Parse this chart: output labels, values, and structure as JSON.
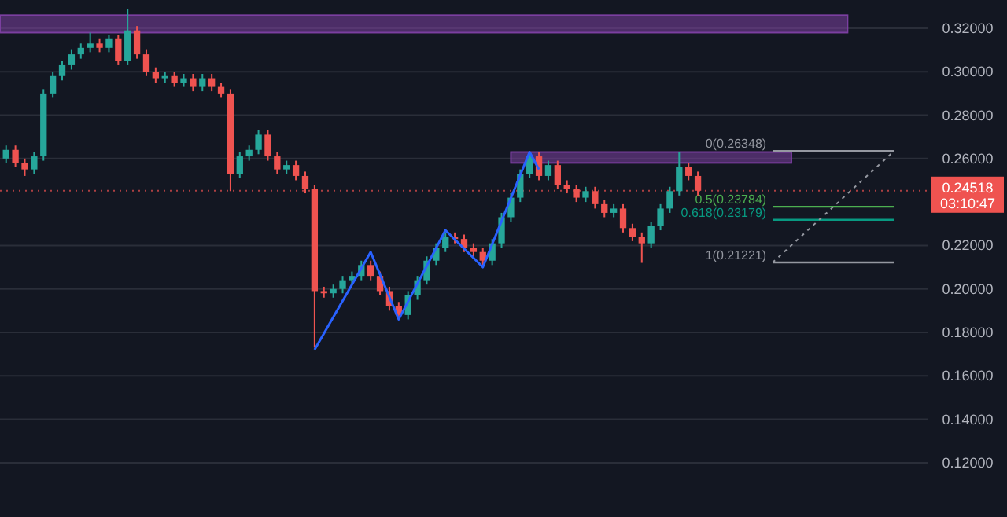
{
  "chart_data": {
    "type": "candlestick",
    "categories": [
      null,
      null,
      null,
      null,
      null,
      null,
      null,
      null,
      null,
      null,
      null,
      null,
      null,
      null,
      null,
      null,
      null,
      null,
      null,
      null,
      null,
      null,
      null,
      null,
      null,
      null,
      null,
      null,
      null,
      null,
      null,
      null,
      null,
      null,
      null,
      null,
      null,
      null,
      null,
      null,
      null,
      null,
      null,
      null,
      null,
      null,
      null,
      null,
      null,
      null,
      null,
      null,
      null,
      null,
      null,
      null,
      null,
      null,
      null,
      null,
      null,
      null,
      null,
      null,
      null,
      null,
      null,
      null,
      null,
      null,
      null,
      null,
      null,
      null,
      null,
      null,
      null,
      null,
      null,
      null,
      null,
      null,
      null,
      null,
      null,
      null,
      null,
      null,
      null,
      null,
      null,
      null,
      null,
      null,
      null,
      null,
      null,
      null,
      null
    ],
    "ohlc": [
      [
        0.26,
        0.266,
        0.258,
        0.264
      ],
      [
        0.264,
        0.266,
        0.256,
        0.258
      ],
      [
        0.258,
        0.26,
        0.252,
        0.255
      ],
      [
        0.255,
        0.263,
        0.253,
        0.261
      ],
      [
        0.261,
        0.292,
        0.259,
        0.29
      ],
      [
        0.29,
        0.3,
        0.288,
        0.298
      ],
      [
        0.298,
        0.305,
        0.296,
        0.303
      ],
      [
        0.303,
        0.31,
        0.301,
        0.308
      ],
      [
        0.308,
        0.313,
        0.306,
        0.311
      ],
      [
        0.311,
        0.318,
        0.309,
        0.313
      ],
      [
        0.313,
        0.315,
        0.309,
        0.311
      ],
      [
        0.311,
        0.317,
        0.309,
        0.315
      ],
      [
        0.315,
        0.317,
        0.303,
        0.305
      ],
      [
        0.305,
        0.329,
        0.303,
        0.319
      ],
      [
        0.319,
        0.321,
        0.306,
        0.308
      ],
      [
        0.308,
        0.31,
        0.298,
        0.3
      ],
      [
        0.3,
        0.302,
        0.295,
        0.297
      ],
      [
        0.297,
        0.3,
        0.295,
        0.298
      ],
      [
        0.298,
        0.3,
        0.293,
        0.295
      ],
      [
        0.295,
        0.299,
        0.293,
        0.297
      ],
      [
        0.297,
        0.299,
        0.291,
        0.293
      ],
      [
        0.293,
        0.299,
        0.291,
        0.297
      ],
      [
        0.297,
        0.299,
        0.291,
        0.293
      ],
      [
        0.293,
        0.295,
        0.288,
        0.29
      ],
      [
        0.29,
        0.292,
        0.245,
        0.253
      ],
      [
        0.253,
        0.263,
        0.251,
        0.261
      ],
      [
        0.261,
        0.266,
        0.259,
        0.264
      ],
      [
        0.264,
        0.273,
        0.262,
        0.271
      ],
      [
        0.271,
        0.273,
        0.259,
        0.261
      ],
      [
        0.261,
        0.263,
        0.253,
        0.255
      ],
      [
        0.255,
        0.259,
        0.253,
        0.257
      ],
      [
        0.257,
        0.259,
        0.25,
        0.252
      ],
      [
        0.252,
        0.254,
        0.244,
        0.246
      ],
      [
        0.246,
        0.248,
        0.173,
        0.199
      ],
      [
        0.199,
        0.201,
        0.196,
        0.198
      ],
      [
        0.198,
        0.202,
        0.196,
        0.2
      ],
      [
        0.2,
        0.206,
        0.198,
        0.204
      ],
      [
        0.204,
        0.208,
        0.202,
        0.206
      ],
      [
        0.206,
        0.213,
        0.204,
        0.211
      ],
      [
        0.211,
        0.213,
        0.204,
        0.206
      ],
      [
        0.206,
        0.208,
        0.197,
        0.199
      ],
      [
        0.199,
        0.201,
        0.19,
        0.192
      ],
      [
        0.192,
        0.194,
        0.186,
        0.188
      ],
      [
        0.188,
        0.199,
        0.186,
        0.197
      ],
      [
        0.197,
        0.206,
        0.195,
        0.204
      ],
      [
        0.204,
        0.215,
        0.202,
        0.213
      ],
      [
        0.213,
        0.221,
        0.211,
        0.219
      ],
      [
        0.219,
        0.226,
        0.217,
        0.224
      ],
      [
        0.224,
        0.226,
        0.221,
        0.223
      ],
      [
        0.223,
        0.225,
        0.217,
        0.219
      ],
      [
        0.219,
        0.221,
        0.215,
        0.217
      ],
      [
        0.217,
        0.219,
        0.211,
        0.213
      ],
      [
        0.213,
        0.223,
        0.211,
        0.221
      ],
      [
        0.221,
        0.235,
        0.219,
        0.233
      ],
      [
        0.233,
        0.244,
        0.231,
        0.242
      ],
      [
        0.242,
        0.255,
        0.24,
        0.253
      ],
      [
        0.253,
        0.263,
        0.251,
        0.261
      ],
      [
        0.261,
        0.263,
        0.25,
        0.252
      ],
      [
        0.252,
        0.259,
        0.25,
        0.257
      ],
      [
        0.257,
        0.259,
        0.246,
        0.248
      ],
      [
        0.248,
        0.25,
        0.244,
        0.246
      ],
      [
        0.246,
        0.248,
        0.24,
        0.242
      ],
      [
        0.242,
        0.247,
        0.24,
        0.245
      ],
      [
        0.245,
        0.247,
        0.237,
        0.239
      ],
      [
        0.239,
        0.241,
        0.233,
        0.235
      ],
      [
        0.235,
        0.239,
        0.233,
        0.237
      ],
      [
        0.237,
        0.239,
        0.226,
        0.228
      ],
      [
        0.228,
        0.23,
        0.222,
        0.224
      ],
      [
        0.224,
        0.226,
        0.212,
        0.221
      ],
      [
        0.221,
        0.231,
        0.219,
        0.229
      ],
      [
        0.229,
        0.239,
        0.227,
        0.237
      ],
      [
        0.237,
        0.247,
        0.235,
        0.245
      ],
      [
        0.245,
        0.263,
        0.243,
        0.256
      ],
      [
        0.256,
        0.258,
        0.25,
        0.252
      ],
      [
        0.252,
        0.254,
        0.243,
        0.24518
      ],
      null,
      null,
      null,
      null,
      null,
      null,
      null,
      null,
      null,
      null,
      null,
      null,
      null,
      null,
      null,
      null,
      null,
      null,
      null,
      null,
      null,
      null,
      null,
      null
    ],
    "colors": [
      "#26a69a",
      "#ef5350",
      "#ef5350",
      "#26a69a",
      "#26a69a",
      "#26a69a",
      "#26a69a",
      "#26a69a",
      "#26a69a",
      "#26a69a",
      "#ef5350",
      "#26a69a",
      "#ef5350",
      "#26a69a",
      "#ef5350",
      "#ef5350",
      "#ef5350",
      "#26a69a",
      "#ef5350",
      "#26a69a",
      "#ef5350",
      "#26a69a",
      "#ef5350",
      "#ef5350",
      "#ef5350",
      "#26a69a",
      "#26a69a",
      "#26a69a",
      "#ef5350",
      "#ef5350",
      "#26a69a",
      "#ef5350",
      "#ef5350",
      "#ef5350",
      "#ef5350",
      "#26a69a",
      "#26a69a",
      "#26a69a",
      "#26a69a",
      "#ef5350",
      "#ef5350",
      "#ef5350",
      "#ef5350",
      "#26a69a",
      "#26a69a",
      "#26a69a",
      "#26a69a",
      "#26a69a",
      "#ef5350",
      "#ef5350",
      "#ef5350",
      "#ef5350",
      "#26a69a",
      "#26a69a",
      "#26a69a",
      "#26a69a",
      "#26a69a",
      "#ef5350",
      "#26a69a",
      "#ef5350",
      "#ef5350",
      "#ef5350",
      "#26a69a",
      "#ef5350",
      "#ef5350",
      "#26a69a",
      "#ef5350",
      "#ef5350",
      "#ef5350",
      "#26a69a",
      "#26a69a",
      "#26a69a",
      "#26a69a",
      "#ef5350",
      "#ef5350",
      null,
      null,
      null,
      null,
      null,
      null,
      null,
      null,
      null,
      null,
      null,
      null,
      null,
      null,
      null,
      null,
      null,
      null,
      null,
      null,
      null,
      null,
      null,
      null
    ],
    "series": [
      {
        "type": "line",
        "color": "#2962ff",
        "values": [
          null,
          null,
          null,
          null,
          null,
          null,
          null,
          null,
          null,
          null,
          null,
          null,
          null,
          null,
          null,
          null,
          null,
          null,
          null,
          null,
          null,
          null,
          null,
          null,
          null,
          null,
          null,
          null,
          null,
          null,
          null,
          null,
          null,
          0.172,
          null,
          null,
          null,
          null,
          null,
          0.217,
          null,
          null,
          0.186,
          null,
          null,
          null,
          null,
          0.227,
          null,
          null,
          null,
          0.21,
          null,
          null,
          null,
          null,
          0.263,
          0.255,
          null,
          null,
          null,
          null,
          null,
          null,
          null,
          null,
          null,
          null,
          null,
          null,
          null,
          null,
          null,
          null,
          null,
          null,
          null,
          null,
          null,
          null,
          null,
          null,
          null,
          null,
          null,
          null,
          null,
          null,
          null,
          null,
          null,
          null,
          null,
          null,
          null,
          null,
          null,
          null,
          null
        ]
      }
    ],
    "ylim": [
      0.095,
      0.333
    ],
    "yticks": [
      {
        "value": 0.12,
        "label": "0.12000"
      },
      {
        "value": 0.14,
        "label": "0.14000"
      },
      {
        "value": 0.16,
        "label": "0.16000"
      },
      {
        "value": 0.18,
        "label": "0.18000"
      },
      {
        "value": 0.2,
        "label": "0.20000"
      },
      {
        "value": 0.22,
        "label": "0.22000"
      },
      {
        "value": 0.26,
        "label": "0.26000"
      },
      {
        "value": 0.28,
        "label": "0.28000"
      },
      {
        "value": 0.3,
        "label": "0.30000"
      },
      {
        "value": 0.32,
        "label": "0.32000"
      }
    ],
    "tick_labels": "y",
    "grid": "y",
    "bands": [
      {
        "axis": "y",
        "from": 0.318,
        "to": 0.326,
        "color": "#7b3fa0"
      },
      {
        "axis": "y",
        "from": 0.258,
        "to": 0.263,
        "color": "#7b3fa0"
      }
    ],
    "ref_lines": [
      {
        "axis": "y",
        "value": 0.24518,
        "label": "0.24518",
        "color": "#ef5350",
        "line_style": "dotted"
      },
      {
        "axis": "y",
        "value": 0.26348,
        "label": "0(0.26348)",
        "color": "#9598a1"
      },
      {
        "axis": "y",
        "value": 0.23784,
        "label": "0.5(0.23784)",
        "color": "#4caf50"
      },
      {
        "axis": "y",
        "value": 0.23179,
        "label": "0.618(0.23179)",
        "color": "#089981"
      },
      {
        "axis": "y",
        "value": 0.21221,
        "label": "1(0.21221)",
        "color": "#9598a1"
      }
    ],
    "annotations": [
      "03:10:47"
    ]
  }
}
